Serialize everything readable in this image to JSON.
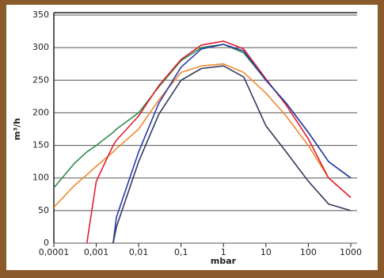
{
  "chart_data": {
    "type": "line",
    "x_label": "mbar",
    "y_label": "m³/h",
    "log_x": true,
    "grid": true,
    "xlim": [
      0.0001,
      1000
    ],
    "ylim": [
      0,
      350
    ],
    "xticks": [
      {
        "value": 0.0001,
        "label": "0,0001"
      },
      {
        "value": 0.001,
        "label": "0,001"
      },
      {
        "value": 0.01,
        "label": "0,01"
      },
      {
        "value": 0.1,
        "label": "0,1"
      },
      1,
      10,
      100,
      1000
    ],
    "yticks": [
      0,
      50,
      100,
      150,
      200,
      250,
      300,
      350
    ],
    "x": [
      0.0001,
      0.0003,
      0.0006,
      0.001,
      0.0025,
      0.003,
      0.01,
      0.03,
      0.1,
      0.3,
      1,
      3,
      10,
      30,
      100,
      300,
      1000
    ],
    "series": [
      {
        "color": "#2e8b4a",
        "values": [
          85,
          122,
          140,
          150,
          170,
          175,
          200,
          240,
          280,
          300,
          305,
          292,
          250,
          215,
          170,
          125,
          100
        ]
      },
      {
        "color": "#f08a30",
        "values": [
          55,
          88,
          105,
          118,
          140,
          145,
          175,
          220,
          262,
          272,
          275,
          262,
          230,
          195,
          150,
          100,
          70
        ]
      },
      {
        "color": "#e02030",
        "values": [
          null,
          null,
          0,
          95,
          150,
          158,
          195,
          242,
          282,
          304,
          310,
          298,
          252,
          212,
          160,
          100,
          70
        ]
      },
      {
        "color": "#2a3aa8",
        "values": [
          null,
          null,
          null,
          null,
          0,
          40,
          140,
          215,
          270,
          298,
          305,
          295,
          250,
          215,
          170,
          125,
          100
        ]
      },
      {
        "color": "#333a5a",
        "values": [
          null,
          null,
          null,
          null,
          0,
          25,
          125,
          198,
          250,
          268,
          272,
          255,
          180,
          140,
          95,
          60,
          50
        ]
      }
    ]
  }
}
